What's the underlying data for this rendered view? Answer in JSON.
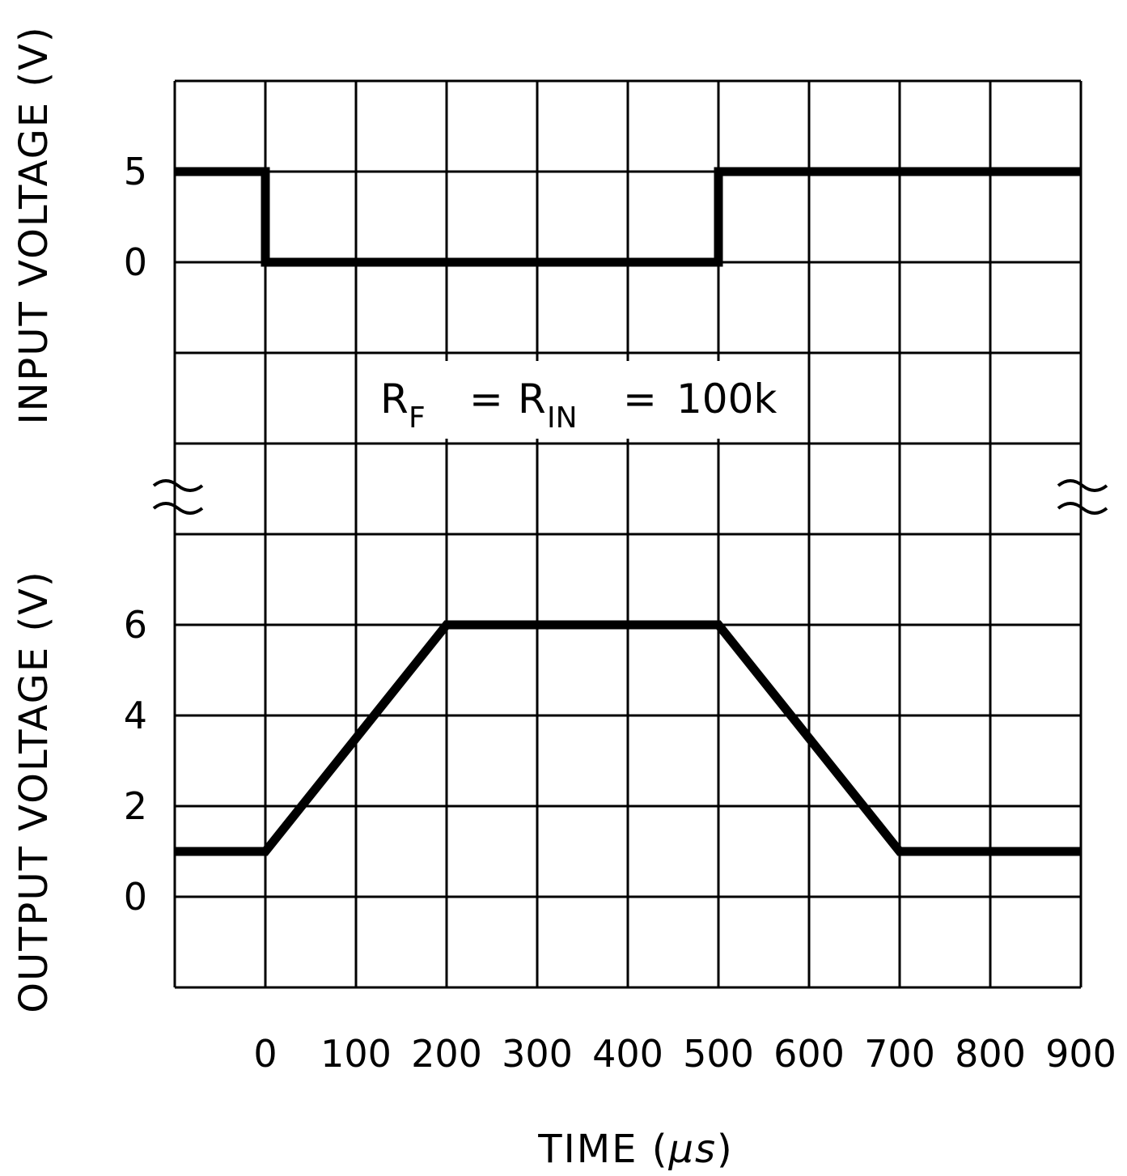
{
  "chart_data": {
    "type": "line",
    "title": "",
    "xlabel": "TIME (μs)",
    "xlabel_main": "TIME (",
    "xlabel_unit": "μs",
    "xlabel_close": ")",
    "xlim": [
      -100,
      900
    ],
    "x_ticks": [
      0,
      100,
      200,
      300,
      400,
      500,
      600,
      700,
      800,
      900
    ],
    "grid": true,
    "annotation": {
      "r1": "R",
      "r1_sub": "F",
      "eq1": "=",
      "r2": "R",
      "r2_sub": "IN",
      "eq2": "=",
      "value": "100k"
    },
    "panels": [
      {
        "name": "input",
        "ylabel": "INPUT VOLTAGE (V)",
        "y_ticks": [
          5,
          0
        ],
        "x": [
          -100,
          0,
          0,
          500,
          500,
          900
        ],
        "y": [
          5,
          5,
          0,
          0,
          5,
          5
        ]
      },
      {
        "name": "output",
        "ylabel": "OUTPUT VOLTAGE (V)",
        "y_ticks": [
          6,
          4,
          2,
          0
        ],
        "x": [
          -100,
          0,
          200,
          500,
          700,
          900
        ],
        "y": [
          1,
          1,
          6,
          6,
          1,
          1
        ]
      }
    ],
    "axis_break": true,
    "line_color": "#000000",
    "grid_color": "#000000"
  }
}
